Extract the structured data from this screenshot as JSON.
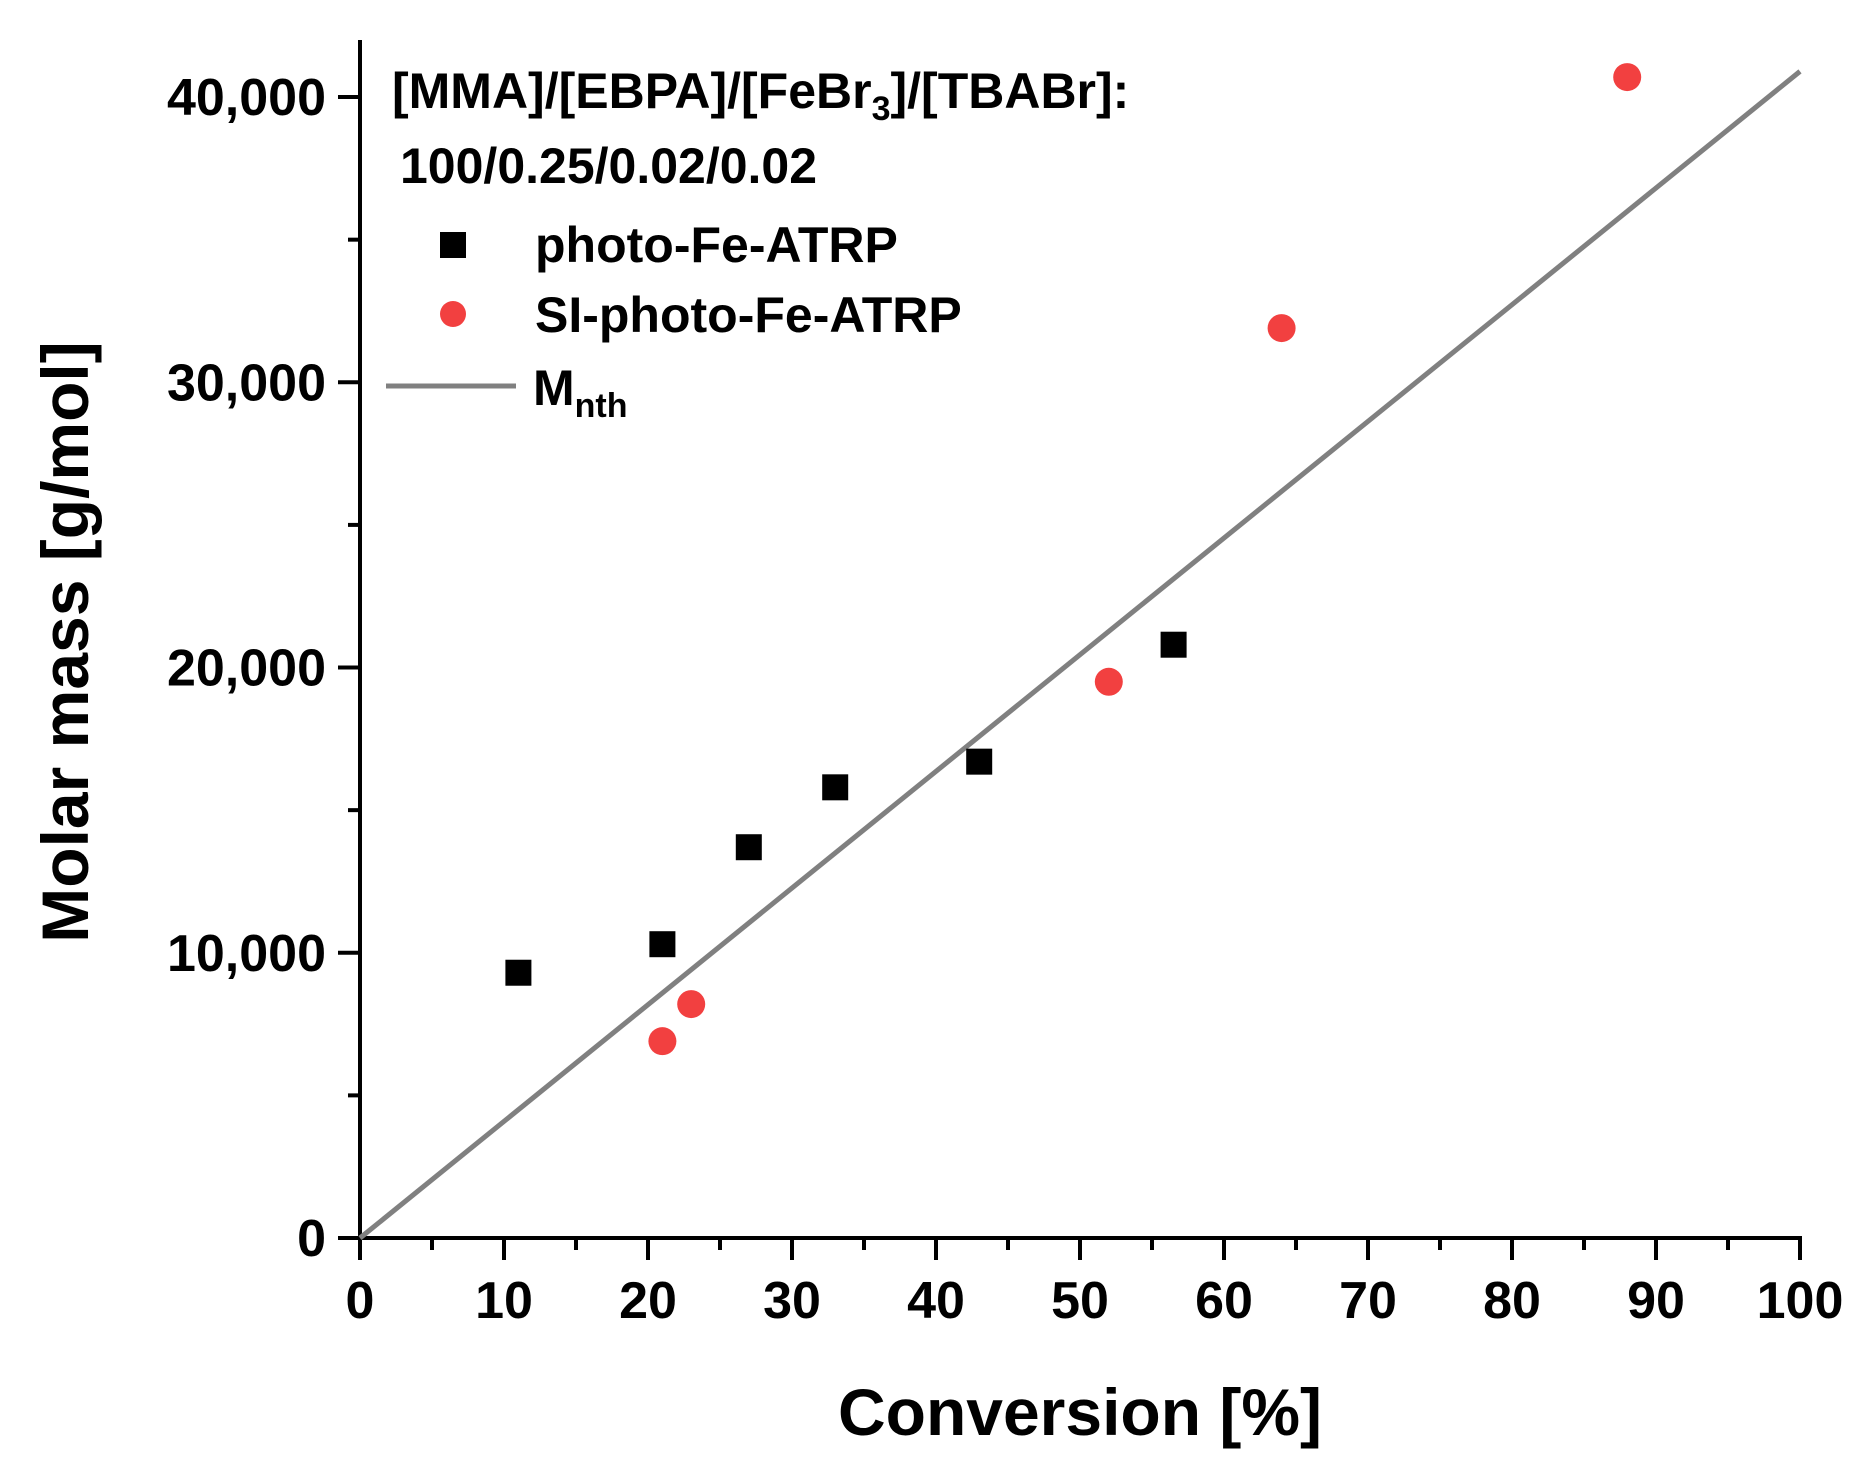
{
  "chart_data": {
    "type": "scatter",
    "title": "",
    "xlabel": "Conversion [%]",
    "ylabel": "Molar mass [g/mol]",
    "xlim": [
      0,
      100
    ],
    "ylim": [
      0,
      42000
    ],
    "x_ticks": [
      0,
      10,
      20,
      30,
      40,
      50,
      60,
      70,
      80,
      90,
      100
    ],
    "x_tick_labels": [
      "0",
      "10",
      "20",
      "30",
      "40",
      "50",
      "60",
      "70",
      "80",
      "90",
      "100"
    ],
    "y_ticks": [
      0,
      10000,
      20000,
      30000,
      40000
    ],
    "y_tick_labels": [
      "0",
      "10,000",
      "20,000",
      "30,000",
      "40,000"
    ],
    "annotation": {
      "line1_parts": [
        "[MMA]/[EBPA]/[FeBr",
        "3",
        "]/[TBABr]:"
      ],
      "line2": "100/0.25/0.02/0.02"
    },
    "legend_position": "top-left",
    "series": [
      {
        "name": "photo-Fe-ATRP",
        "marker": "square",
        "color": "#000000",
        "x": [
          11,
          21,
          27,
          33,
          43,
          56.5
        ],
        "y": [
          9300,
          10300,
          13700,
          15800,
          16700,
          20800
        ]
      },
      {
        "name": "SI-photo-Fe-ATRP",
        "marker": "circle",
        "color": "#f24040",
        "x": [
          21,
          23,
          52,
          64,
          88
        ],
        "y": [
          6900,
          8200,
          19500,
          31900,
          40700
        ]
      },
      {
        "name": "M",
        "name_sub": "nth",
        "marker": "line",
        "color": "#808080",
        "x": [
          0,
          100
        ],
        "y": [
          0,
          40900
        ]
      }
    ]
  }
}
